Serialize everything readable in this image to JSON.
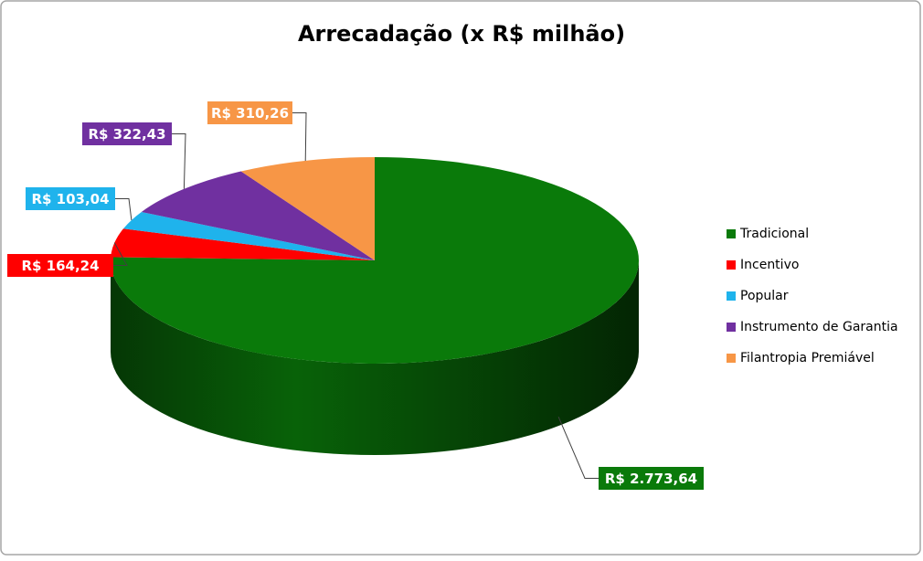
{
  "chart_data": {
    "type": "pie",
    "title": "Arrecadação (x R$ milhão)",
    "categories": [
      "Tradicional",
      "Incentivo",
      "Popular",
      "Instrumento de Garantia",
      "Filantropia Premiável"
    ],
    "values": [
      2773.64,
      164.24,
      103.04,
      322.43,
      310.26
    ],
    "value_labels": [
      "R$ 2.773,64",
      "R$ 164,24",
      "R$ 103,04",
      "R$ 322,43",
      "R$ 310,26"
    ],
    "colors": [
      "#0a7a0a",
      "#ff0000",
      "#1fb3ec",
      "#7030a0",
      "#f79646"
    ],
    "legend": "right"
  }
}
